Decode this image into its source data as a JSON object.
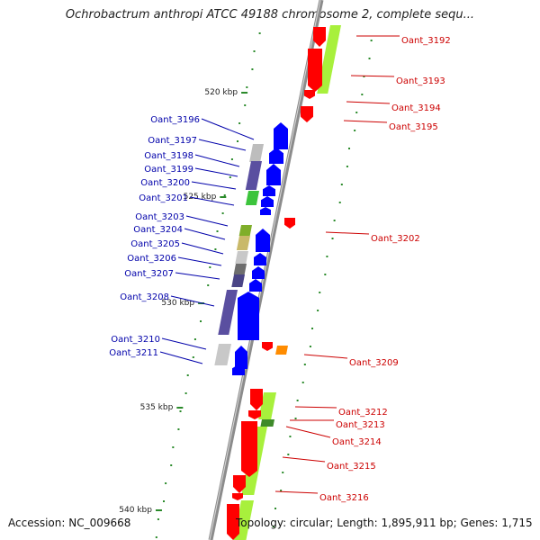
{
  "title": "Ochrobactrum anthropi ATCC 49188 chromosome 2, complete sequ...",
  "footer": {
    "accession": "Accession: NC_009668",
    "topology": "Topology: circular; Length: 1,895,911 bp; Genes: 1,715"
  },
  "colors": {
    "reverse_strand": "#ff0000",
    "forward_strand": "#0000ff",
    "reverse_label": "#cc0000",
    "forward_label": "#0000aa",
    "cog_lime": "#a8f03c",
    "backbone": "#8c8c8c",
    "tick": "#2a8a2a"
  },
  "chart_data": {
    "type": "diagram",
    "view": "linear genome map segment",
    "axis_unit": "kbp",
    "ticks": [
      "520 kbp",
      "525 kbp",
      "530 kbp",
      "535 kbp",
      "540 kbp"
    ],
    "genes_reverse": [
      "Oant_3192",
      "Oant_3193",
      "Oant_3194",
      "Oant_3195",
      "Oant_3202",
      "Oant_3209",
      "Oant_3212",
      "Oant_3213",
      "Oant_3214",
      "Oant_3215",
      "Oant_3216"
    ],
    "genes_forward": [
      "Oant_3196",
      "Oant_3197",
      "Oant_3198",
      "Oant_3199",
      "Oant_3200",
      "Oant_3201",
      "Oant_3203",
      "Oant_3204",
      "Oant_3205",
      "Oant_3206",
      "Oant_3207",
      "Oant_3208",
      "Oant_3210",
      "Oant_3211"
    ]
  }
}
